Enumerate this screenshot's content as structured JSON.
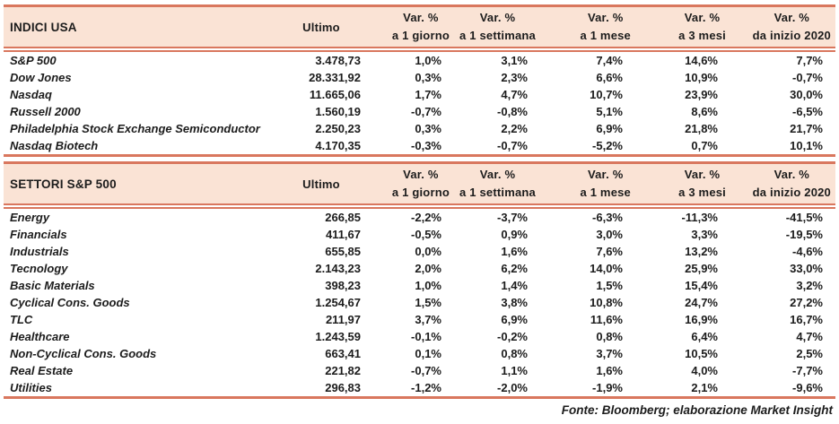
{
  "labels": {
    "ultimo": "Ultimo"
  },
  "var_columns": [
    {
      "line1": "Var. %",
      "line2": "a 1 giorno"
    },
    {
      "line1": "Var. %",
      "line2": "a 1 settimana"
    },
    {
      "line1": "Var. %",
      "line2": "a 1 mese"
    },
    {
      "line1": "Var. %",
      "line2": "a 3 mesi"
    },
    {
      "line1": "Var. %",
      "line2": "da inizio 2020"
    }
  ],
  "tables": [
    {
      "title": "INDICI USA",
      "rows": [
        {
          "name": "S&P 500",
          "values": [
            "3.478,73",
            "1,0%",
            "3,1%",
            "7,4%",
            "14,6%",
            "7,7%"
          ]
        },
        {
          "name": "Dow Jones",
          "values": [
            "28.331,92",
            "0,3%",
            "2,3%",
            "6,6%",
            "10,9%",
            "-0,7%"
          ]
        },
        {
          "name": "Nasdaq",
          "values": [
            "11.665,06",
            "1,7%",
            "4,7%",
            "10,7%",
            "23,9%",
            "30,0%"
          ]
        },
        {
          "name": "Russell 2000",
          "values": [
            "1.560,19",
            "-0,7%",
            "-0,8%",
            "5,1%",
            "8,6%",
            "-6,5%"
          ]
        },
        {
          "name": "Philadelphia Stock Exchange Semiconductor",
          "values": [
            "2.250,23",
            "0,3%",
            "2,2%",
            "6,9%",
            "21,8%",
            "21,7%"
          ]
        },
        {
          "name": "Nasdaq Biotech",
          "values": [
            "4.170,35",
            "-0,3%",
            "-0,7%",
            "-5,2%",
            "0,7%",
            "10,1%"
          ]
        }
      ]
    },
    {
      "title": "SETTORI S&P 500",
      "rows": [
        {
          "name": "Energy",
          "values": [
            "266,85",
            "-2,2%",
            "-3,7%",
            "-6,3%",
            "-11,3%",
            "-41,5%"
          ]
        },
        {
          "name": "Financials",
          "values": [
            "411,67",
            "-0,5%",
            "0,9%",
            "3,0%",
            "3,3%",
            "-19,5%"
          ]
        },
        {
          "name": "Industrials",
          "values": [
            "655,85",
            "0,0%",
            "1,6%",
            "7,6%",
            "13,2%",
            "-4,6%"
          ]
        },
        {
          "name": "Tecnology",
          "values": [
            "2.143,23",
            "2,0%",
            "6,2%",
            "14,0%",
            "25,9%",
            "33,0%"
          ]
        },
        {
          "name": "Basic Materials",
          "values": [
            "398,23",
            "1,0%",
            "1,4%",
            "1,5%",
            "15,4%",
            "3,2%"
          ]
        },
        {
          "name": "Cyclical Cons. Goods",
          "values": [
            "1.254,67",
            "1,5%",
            "3,8%",
            "10,8%",
            "24,7%",
            "27,2%"
          ]
        },
        {
          "name": "TLC",
          "values": [
            "211,97",
            "3,7%",
            "6,9%",
            "11,6%",
            "16,9%",
            "16,7%"
          ]
        },
        {
          "name": "Healthcare",
          "values": [
            "1.243,59",
            "-0,1%",
            "-0,2%",
            "0,8%",
            "6,4%",
            "4,7%"
          ]
        },
        {
          "name": "Non-Cyclical Cons. Goods",
          "values": [
            "663,41",
            "0,1%",
            "0,8%",
            "3,7%",
            "10,5%",
            "2,5%"
          ]
        },
        {
          "name": "Real Estate",
          "values": [
            "221,82",
            "-0,7%",
            "1,1%",
            "1,6%",
            "4,0%",
            "-7,7%"
          ]
        },
        {
          "name": "Utilities",
          "values": [
            "296,83",
            "-1,2%",
            "-2,0%",
            "-1,9%",
            "2,1%",
            "-9,6%"
          ]
        }
      ]
    }
  ],
  "footer": "Fonte: Bloomberg; elaborazione Market Insight",
  "colors": {
    "header_bg": "#fae3d5",
    "border": "#d9775e",
    "text": "#1c1c1c"
  }
}
